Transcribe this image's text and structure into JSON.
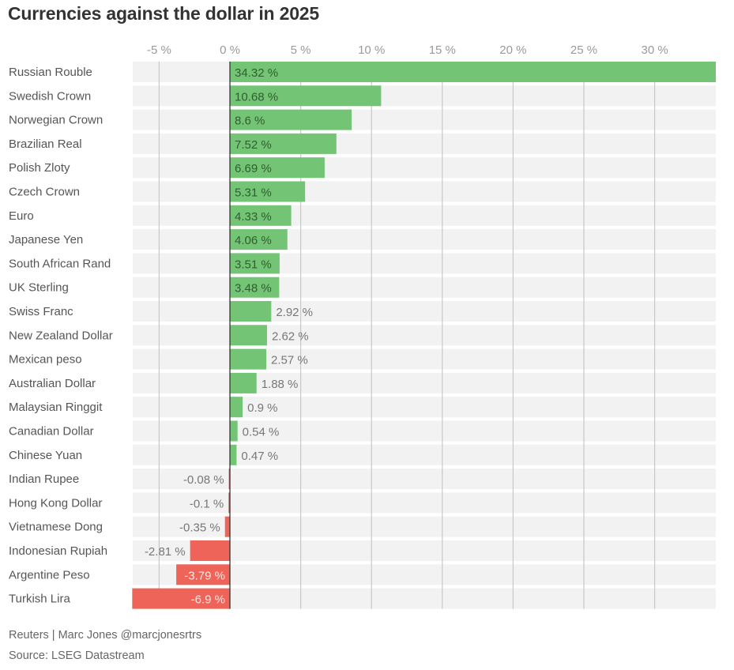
{
  "chart_data": {
    "type": "bar",
    "orientation": "horizontal",
    "title": "Currencies against the dollar in 2025",
    "xlabel": "",
    "ylabel": "",
    "xlim": [
      -6.9,
      34.32
    ],
    "x_ticks": [
      -5,
      0,
      5,
      10,
      15,
      20,
      25,
      30
    ],
    "x_tick_labels": [
      "-5 %",
      "0 %",
      "5 %",
      "10 %",
      "15 %",
      "20 %",
      "25 %",
      "30 %"
    ],
    "x_axis_position": "top",
    "grid": true,
    "legend": "none",
    "value_suffix": " %",
    "positive_color": "#74c476",
    "negative_color": "#ee6459",
    "row_background_color": "#f2f2f2",
    "categories": [
      "Russian Rouble",
      "Swedish Crown",
      "Norwegian Crown",
      "Brazilian Real",
      "Polish Zloty",
      "Czech Crown",
      "Euro",
      "Japanese Yen",
      "South African Rand",
      "UK Sterling",
      "Swiss Franc",
      "New Zealand Dollar",
      "Mexican peso",
      "Australian Dollar",
      "Malaysian Ringgit",
      "Canadian Dollar",
      "Chinese Yuan",
      "Indian Rupee",
      "Hong Kong Dollar",
      "Vietnamese Dong",
      "Indonesian Rupiah",
      "Argentine Peso",
      "Turkish Lira"
    ],
    "values": [
      34.32,
      10.68,
      8.6,
      7.52,
      6.69,
      5.31,
      4.33,
      4.06,
      3.51,
      3.48,
      2.92,
      2.62,
      2.57,
      1.88,
      0.9,
      0.54,
      0.47,
      -0.08,
      -0.1,
      -0.35,
      -2.81,
      -3.79,
      -6.9
    ],
    "value_labels": [
      "34.32 %",
      "10.68 %",
      "8.6 %",
      "7.52 %",
      "6.69 %",
      "5.31 %",
      "4.33 %",
      "4.06 %",
      "3.51 %",
      "3.48 %",
      "2.92 %",
      "2.62 %",
      "2.57 %",
      "1.88 %",
      "0.9 %",
      "0.54 %",
      "0.47 %",
      "-0.08 %",
      "-0.1 %",
      "-0.35 %",
      "-2.81 %",
      "-3.79 %",
      "-6.9 %"
    ]
  },
  "footer": {
    "credit": "Reuters | Marc Jones @marcjonesrtrs",
    "source": "Source: LSEG Datastream"
  }
}
